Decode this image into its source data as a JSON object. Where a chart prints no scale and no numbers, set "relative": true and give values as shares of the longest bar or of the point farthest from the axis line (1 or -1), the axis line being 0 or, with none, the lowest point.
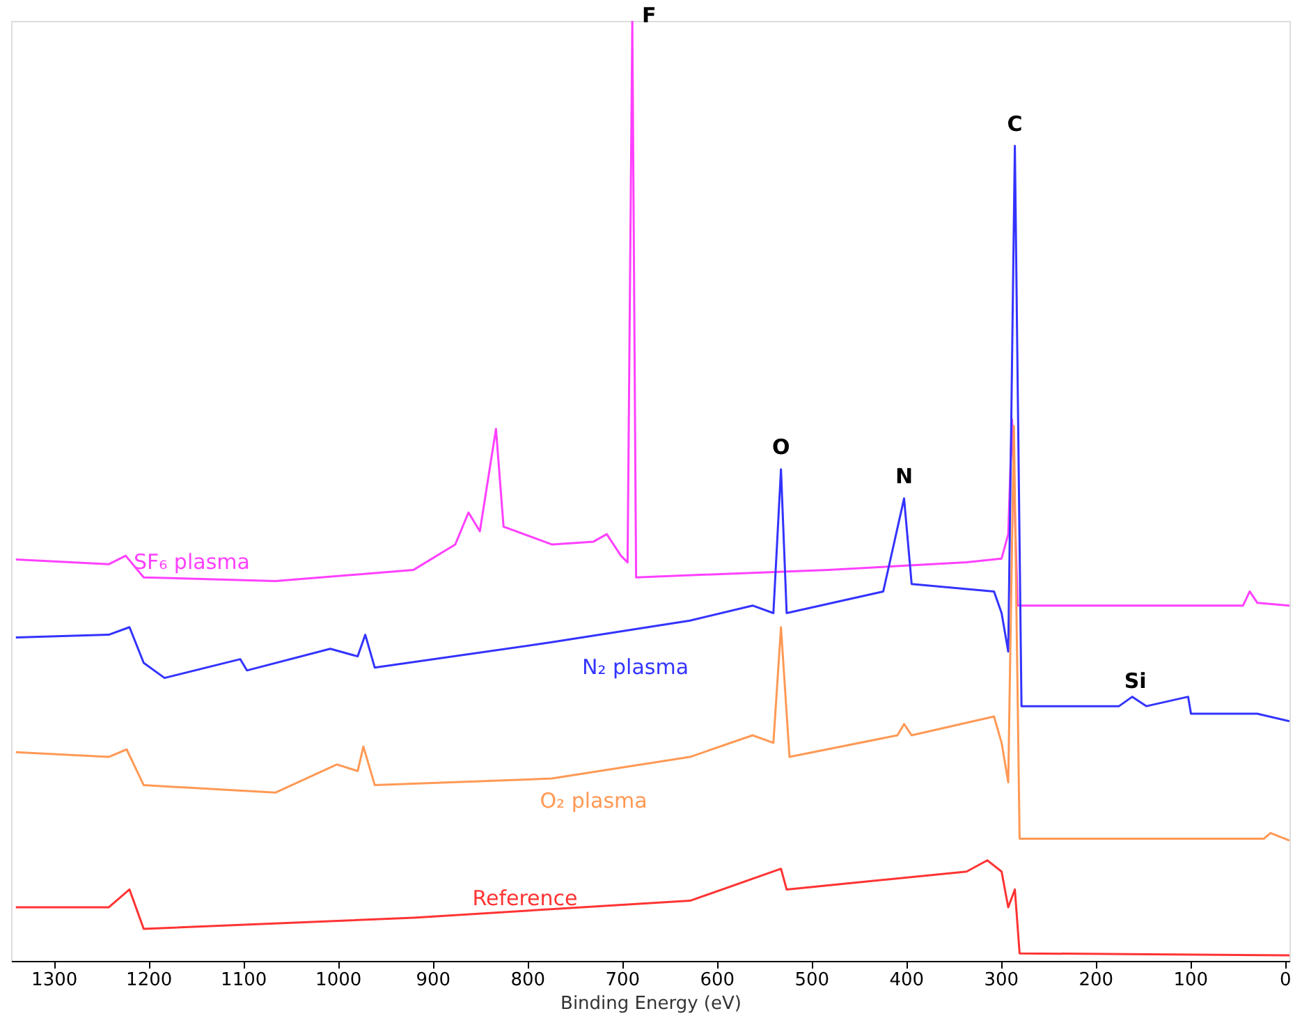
{
  "chart_data": {
    "type": "line",
    "relative": true,
    "xlabel": "Binding Energy (eV)",
    "xlim": [
      1345,
      -5
    ],
    "xticks": [
      1300,
      1200,
      1100,
      1000,
      900,
      800,
      700,
      600,
      500,
      400,
      300,
      200,
      100,
      0
    ],
    "grid": false,
    "legend": false,
    "marker": "none",
    "line_style": "solid",
    "series": [
      {
        "name": "SF₆ plasma",
        "color": "#ff40ff",
        "x": [
          1340,
          1242,
          1224,
          1205,
          1066,
          920,
          876,
          862,
          850,
          833,
          825,
          774,
          730,
          716,
          701,
          694,
          689,
          685,
          482,
          336,
          299,
          292,
          288,
          282,
          44,
          37,
          29,
          -5
        ],
        "values": [
          0.427,
          0.422,
          0.431,
          0.408,
          0.404,
          0.416,
          0.443,
          0.477,
          0.457,
          0.566,
          0.462,
          0.443,
          0.446,
          0.454,
          0.431,
          0.424,
          1.0,
          0.408,
          0.416,
          0.424,
          0.428,
          0.454,
          0.576,
          0.378,
          0.378,
          0.393,
          0.381,
          0.378
        ]
      },
      {
        "name": "N₂ plasma",
        "color": "#3333ff",
        "x": [
          1340,
          1242,
          1220,
          1205,
          1183,
          1103,
          1096,
          1008,
          979,
          971,
          961,
          774,
          628,
          562,
          540,
          532,
          526,
          424,
          402,
          394,
          307,
          299,
          292,
          285,
          278,
          175,
          161,
          146,
          102,
          99,
          29,
          -5
        ],
        "values": [
          0.344,
          0.347,
          0.355,
          0.317,
          0.301,
          0.321,
          0.309,
          0.332,
          0.324,
          0.347,
          0.312,
          0.339,
          0.362,
          0.378,
          0.37,
          0.523,
          0.37,
          0.393,
          0.492,
          0.401,
          0.393,
          0.37,
          0.329,
          0.867,
          0.271,
          0.271,
          0.281,
          0.271,
          0.281,
          0.263,
          0.263,
          0.255
        ]
      },
      {
        "name": "O₂ plasma",
        "color": "#ff9955",
        "x": [
          1340,
          1242,
          1223,
          1205,
          1066,
          1001,
          979,
          973,
          961,
          774,
          628,
          562,
          540,
          532,
          523,
          409,
          402,
          394,
          307,
          299,
          292,
          286,
          280,
          22,
          15,
          -5
        ],
        "values": [
          0.222,
          0.217,
          0.225,
          0.187,
          0.179,
          0.209,
          0.202,
          0.228,
          0.187,
          0.194,
          0.217,
          0.24,
          0.232,
          0.355,
          0.217,
          0.24,
          0.252,
          0.24,
          0.26,
          0.232,
          0.19,
          0.569,
          0.13,
          0.13,
          0.136,
          0.128
        ]
      },
      {
        "name": "Reference",
        "color": "#ff3333",
        "x": [
          1340,
          1242,
          1220,
          1205,
          920,
          628,
          532,
          526,
          336,
          314,
          299,
          292,
          285,
          280,
          -5
        ],
        "values": [
          0.057,
          0.057,
          0.076,
          0.034,
          0.046,
          0.064,
          0.098,
          0.076,
          0.095,
          0.107,
          0.095,
          0.057,
          0.076,
          0.008,
          0.006
        ]
      }
    ],
    "annotations": [
      {
        "text": "F",
        "x": 689,
        "y": 1.0
      },
      {
        "text": "O",
        "x": 532,
        "y": 0.523
      },
      {
        "text": "N",
        "x": 402,
        "y": 0.492
      },
      {
        "text": "C",
        "x": 285,
        "y": 0.867
      },
      {
        "text": "Si",
        "x": 146,
        "y": 0.271
      }
    ]
  }
}
